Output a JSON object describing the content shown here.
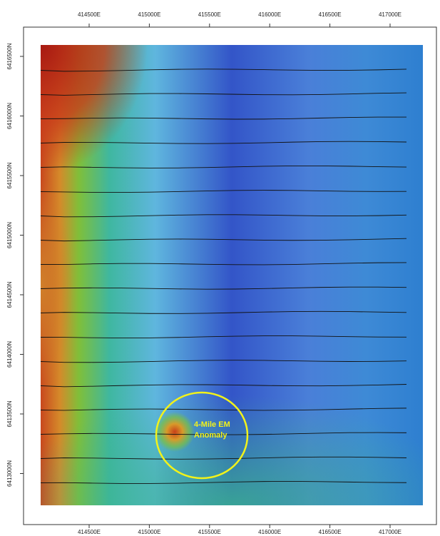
{
  "map": {
    "eastings": [
      "414500E",
      "415000E",
      "415500E",
      "416000E",
      "416500E",
      "417000E"
    ],
    "northings": [
      "6416500N",
      "6416000N",
      "6415500N",
      "6415000N",
      "6414500N",
      "6414000N",
      "6413500N",
      "6413000N"
    ],
    "annotation": [
      "4-Mile EM",
      "Anomaly"
    ]
  }
}
